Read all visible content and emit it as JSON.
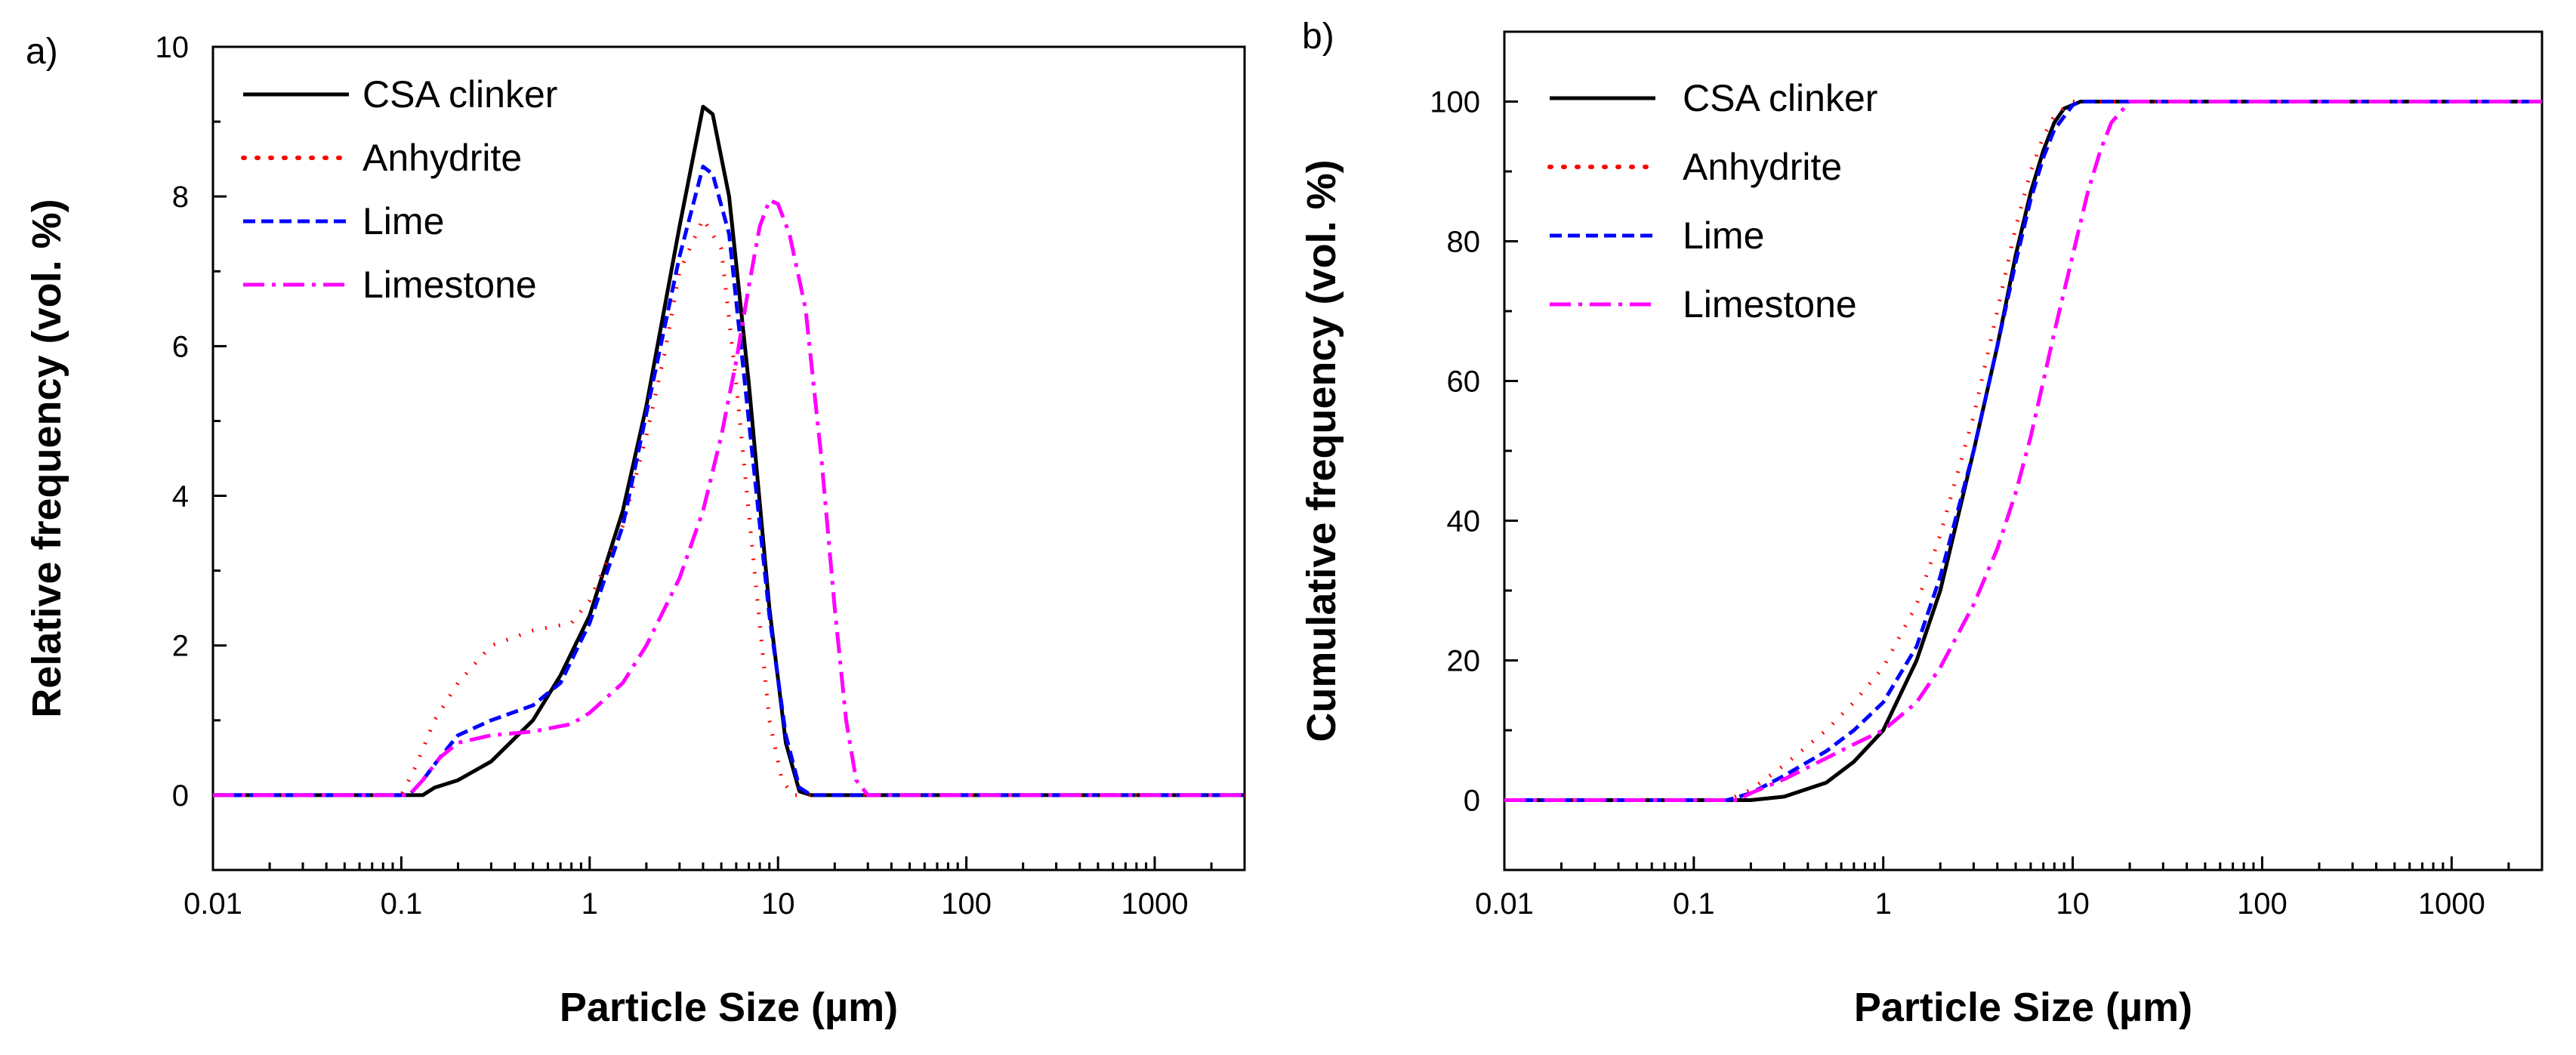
{
  "chart_data": [
    {
      "panel_label": "a)",
      "type": "line",
      "x_scale": "log",
      "xlabel": "Particle Size (µm)",
      "ylabel": "Relative frequency (vol. %)",
      "xlim": [
        0.01,
        3000
      ],
      "ylim": [
        -1,
        10
      ],
      "x_ticks": [
        {
          "value": 0.01,
          "label": "0.01"
        },
        {
          "value": 0.1,
          "label": "0.1"
        },
        {
          "value": 1,
          "label": "1"
        },
        {
          "value": 10,
          "label": "10"
        },
        {
          "value": 100,
          "label": "100"
        },
        {
          "value": 1000,
          "label": "1000"
        }
      ],
      "y_ticks": [
        {
          "value": 0,
          "label": "0"
        },
        {
          "value": 2,
          "label": "2"
        },
        {
          "value": 4,
          "label": "4"
        },
        {
          "value": 6,
          "label": "6"
        },
        {
          "value": 8,
          "label": "8"
        },
        {
          "value": 10,
          "label": "10"
        }
      ],
      "legend_position": "top-left",
      "series": [
        {
          "name": "CSA clinker",
          "color": "#000000",
          "dash": "solid",
          "points": [
            [
              0.01,
              0
            ],
            [
              0.13,
              0
            ],
            [
              0.15,
              0.1
            ],
            [
              0.2,
              0.2
            ],
            [
              0.3,
              0.45
            ],
            [
              0.5,
              1.0
            ],
            [
              0.7,
              1.6
            ],
            [
              1,
              2.4
            ],
            [
              1.5,
              3.8
            ],
            [
              2,
              5.2
            ],
            [
              3,
              7.6
            ],
            [
              4,
              9.2
            ],
            [
              4.5,
              9.1
            ],
            [
              5.5,
              8.0
            ],
            [
              7,
              5.5
            ],
            [
              9,
              2.5
            ],
            [
              11,
              0.7
            ],
            [
              13,
              0.05
            ],
            [
              15,
              0
            ],
            [
              3000,
              0
            ]
          ]
        },
        {
          "name": "Anhydrite",
          "color": "#ff0000",
          "dash": "dotted",
          "points": [
            [
              0.01,
              0
            ],
            [
              0.1,
              0
            ],
            [
              0.12,
              0.4
            ],
            [
              0.15,
              1.0
            ],
            [
              0.2,
              1.5
            ],
            [
              0.3,
              2.0
            ],
            [
              0.5,
              2.2
            ],
            [
              0.8,
              2.3
            ],
            [
              1,
              2.6
            ],
            [
              1.5,
              3.6
            ],
            [
              2,
              4.8
            ],
            [
              2.5,
              5.9
            ],
            [
              3,
              7.0
            ],
            [
              4,
              7.7
            ],
            [
              5,
              7.3
            ],
            [
              6,
              5.5
            ],
            [
              7.5,
              3.0
            ],
            [
              9,
              1.0
            ],
            [
              10.5,
              0.2
            ],
            [
              12,
              0
            ],
            [
              3000,
              0
            ]
          ]
        },
        {
          "name": "Lime",
          "color": "#0000ff",
          "dash": "dashed",
          "points": [
            [
              0.01,
              0
            ],
            [
              0.11,
              0
            ],
            [
              0.13,
              0.2
            ],
            [
              0.16,
              0.5
            ],
            [
              0.2,
              0.8
            ],
            [
              0.3,
              1.0
            ],
            [
              0.5,
              1.2
            ],
            [
              0.7,
              1.5
            ],
            [
              1,
              2.3
            ],
            [
              1.5,
              3.6
            ],
            [
              2,
              5.1
            ],
            [
              3,
              7.2
            ],
            [
              4,
              8.4
            ],
            [
              4.5,
              8.3
            ],
            [
              5.5,
              7.5
            ],
            [
              7,
              5.0
            ],
            [
              9,
              2.4
            ],
            [
              11,
              0.8
            ],
            [
              13,
              0.1
            ],
            [
              15,
              0
            ],
            [
              3000,
              0
            ]
          ]
        },
        {
          "name": "Limestone",
          "color": "#ff00ff",
          "dash": "dashdot",
          "points": [
            [
              0.01,
              0
            ],
            [
              0.11,
              0
            ],
            [
              0.13,
              0.2
            ],
            [
              0.16,
              0.5
            ],
            [
              0.2,
              0.7
            ],
            [
              0.3,
              0.8
            ],
            [
              0.5,
              0.85
            ],
            [
              0.8,
              0.95
            ],
            [
              1,
              1.1
            ],
            [
              1.5,
              1.5
            ],
            [
              2,
              2.0
            ],
            [
              3,
              2.9
            ],
            [
              4,
              3.8
            ],
            [
              5,
              4.8
            ],
            [
              6,
              5.8
            ],
            [
              7,
              6.8
            ],
            [
              8,
              7.6
            ],
            [
              9,
              7.95
            ],
            [
              10,
              7.9
            ],
            [
              11.5,
              7.5
            ],
            [
              14,
              6.5
            ],
            [
              17,
              4.5
            ],
            [
              20,
              2.5
            ],
            [
              23,
              1.0
            ],
            [
              26,
              0.2
            ],
            [
              30,
              0
            ],
            [
              3000,
              0
            ]
          ]
        }
      ]
    },
    {
      "panel_label": "b)",
      "type": "line",
      "x_scale": "log",
      "xlabel": "Particle Size (µm)",
      "ylabel": "Cumulative frequency (vol. %)",
      "xlim": [
        0.01,
        3000
      ],
      "ylim": [
        -10,
        110
      ],
      "x_ticks": [
        {
          "value": 0.01,
          "label": "0.01"
        },
        {
          "value": 0.1,
          "label": "0.1"
        },
        {
          "value": 1,
          "label": "1"
        },
        {
          "value": 10,
          "label": "10"
        },
        {
          "value": 100,
          "label": "100"
        },
        {
          "value": 1000,
          "label": "1000"
        }
      ],
      "y_ticks": [
        {
          "value": 0,
          "label": "0"
        },
        {
          "value": 20,
          "label": "20"
        },
        {
          "value": 40,
          "label": "40"
        },
        {
          "value": 60,
          "label": "60"
        },
        {
          "value": 80,
          "label": "80"
        },
        {
          "value": 100,
          "label": "100"
        }
      ],
      "legend_position": "top-left",
      "series": [
        {
          "name": "CSA clinker",
          "color": "#000000",
          "dash": "solid",
          "points": [
            [
              0.01,
              0
            ],
            [
              0.2,
              0
            ],
            [
              0.3,
              0.5
            ],
            [
              0.5,
              2.5
            ],
            [
              0.7,
              5.5
            ],
            [
              1,
              10
            ],
            [
              1.5,
              20
            ],
            [
              2,
              30
            ],
            [
              3,
              50
            ],
            [
              4,
              65
            ],
            [
              5,
              78
            ],
            [
              6,
              87
            ],
            [
              7,
              93
            ],
            [
              8,
              97
            ],
            [
              9,
              99
            ],
            [
              11,
              100
            ],
            [
              3000,
              100
            ]
          ]
        },
        {
          "name": "Anhydrite",
          "color": "#ff0000",
          "dash": "dotted",
          "points": [
            [
              0.01,
              0
            ],
            [
              0.15,
              0
            ],
            [
              0.2,
              1.5
            ],
            [
              0.3,
              5
            ],
            [
              0.5,
              10
            ],
            [
              0.7,
              14
            ],
            [
              1,
              19
            ],
            [
              1.5,
              28
            ],
            [
              2,
              38
            ],
            [
              3,
              55
            ],
            [
              4,
              70
            ],
            [
              5,
              82
            ],
            [
              6,
              90
            ],
            [
              7,
              95
            ],
            [
              8,
              98
            ],
            [
              10,
              100
            ],
            [
              3000,
              100
            ]
          ]
        },
        {
          "name": "Lime",
          "color": "#0000ff",
          "dash": "dashed",
          "points": [
            [
              0.01,
              0
            ],
            [
              0.15,
              0
            ],
            [
              0.2,
              1
            ],
            [
              0.3,
              3.5
            ],
            [
              0.5,
              7
            ],
            [
              0.7,
              10
            ],
            [
              1,
              14
            ],
            [
              1.5,
              22
            ],
            [
              2,
              32
            ],
            [
              3,
              50
            ],
            [
              4,
              65
            ],
            [
              5,
              77
            ],
            [
              6,
              86
            ],
            [
              7,
              92
            ],
            [
              8,
              96
            ],
            [
              10,
              99.5
            ],
            [
              11,
              100
            ],
            [
              3000,
              100
            ]
          ]
        },
        {
          "name": "Limestone",
          "color": "#ff00ff",
          "dash": "dashdot",
          "points": [
            [
              0.01,
              0
            ],
            [
              0.17,
              0
            ],
            [
              0.2,
              1
            ],
            [
              0.3,
              3
            ],
            [
              0.5,
              6
            ],
            [
              0.7,
              8
            ],
            [
              1,
              10
            ],
            [
              1.5,
              14
            ],
            [
              2,
              19
            ],
            [
              3,
              28
            ],
            [
              4,
              36
            ],
            [
              5,
              44
            ],
            [
              6,
              52
            ],
            [
              7,
              60
            ],
            [
              8,
              67
            ],
            [
              10,
              78
            ],
            [
              12,
              87
            ],
            [
              14,
              93
            ],
            [
              16,
              97
            ],
            [
              20,
              100
            ],
            [
              3000,
              100
            ]
          ]
        }
      ]
    }
  ]
}
